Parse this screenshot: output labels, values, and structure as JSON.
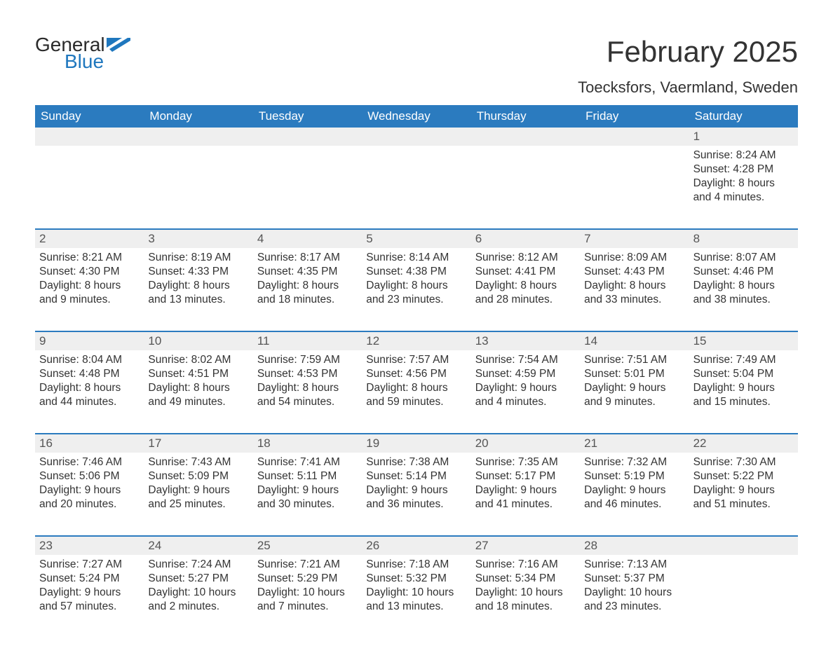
{
  "brand": {
    "general": "General",
    "blue": "Blue"
  },
  "title": "February 2025",
  "location": "Toecksfors, Vaermland, Sweden",
  "colors": {
    "header_bg": "#2b7bbf",
    "header_text": "#ffffff",
    "daynum_bg": "#efefef",
    "border": "#2b7bbf",
    "logo_blue": "#1f77be",
    "text": "#333333"
  },
  "weekday_labels": [
    "Sunday",
    "Monday",
    "Tuesday",
    "Wednesday",
    "Thursday",
    "Friday",
    "Saturday"
  ],
  "weeks": [
    {
      "numbers": [
        "",
        "",
        "",
        "",
        "",
        "",
        "1"
      ],
      "cells": [
        null,
        null,
        null,
        null,
        null,
        null,
        {
          "sunrise": "Sunrise: 8:24 AM",
          "sunset": "Sunset: 4:28 PM",
          "day1": "Daylight: 8 hours",
          "day2": "and 4 minutes."
        }
      ]
    },
    {
      "numbers": [
        "2",
        "3",
        "4",
        "5",
        "6",
        "7",
        "8"
      ],
      "cells": [
        {
          "sunrise": "Sunrise: 8:21 AM",
          "sunset": "Sunset: 4:30 PM",
          "day1": "Daylight: 8 hours",
          "day2": "and 9 minutes."
        },
        {
          "sunrise": "Sunrise: 8:19 AM",
          "sunset": "Sunset: 4:33 PM",
          "day1": "Daylight: 8 hours",
          "day2": "and 13 minutes."
        },
        {
          "sunrise": "Sunrise: 8:17 AM",
          "sunset": "Sunset: 4:35 PM",
          "day1": "Daylight: 8 hours",
          "day2": "and 18 minutes."
        },
        {
          "sunrise": "Sunrise: 8:14 AM",
          "sunset": "Sunset: 4:38 PM",
          "day1": "Daylight: 8 hours",
          "day2": "and 23 minutes."
        },
        {
          "sunrise": "Sunrise: 8:12 AM",
          "sunset": "Sunset: 4:41 PM",
          "day1": "Daylight: 8 hours",
          "day2": "and 28 minutes."
        },
        {
          "sunrise": "Sunrise: 8:09 AM",
          "sunset": "Sunset: 4:43 PM",
          "day1": "Daylight: 8 hours",
          "day2": "and 33 minutes."
        },
        {
          "sunrise": "Sunrise: 8:07 AM",
          "sunset": "Sunset: 4:46 PM",
          "day1": "Daylight: 8 hours",
          "day2": "and 38 minutes."
        }
      ]
    },
    {
      "numbers": [
        "9",
        "10",
        "11",
        "12",
        "13",
        "14",
        "15"
      ],
      "cells": [
        {
          "sunrise": "Sunrise: 8:04 AM",
          "sunset": "Sunset: 4:48 PM",
          "day1": "Daylight: 8 hours",
          "day2": "and 44 minutes."
        },
        {
          "sunrise": "Sunrise: 8:02 AM",
          "sunset": "Sunset: 4:51 PM",
          "day1": "Daylight: 8 hours",
          "day2": "and 49 minutes."
        },
        {
          "sunrise": "Sunrise: 7:59 AM",
          "sunset": "Sunset: 4:53 PM",
          "day1": "Daylight: 8 hours",
          "day2": "and 54 minutes."
        },
        {
          "sunrise": "Sunrise: 7:57 AM",
          "sunset": "Sunset: 4:56 PM",
          "day1": "Daylight: 8 hours",
          "day2": "and 59 minutes."
        },
        {
          "sunrise": "Sunrise: 7:54 AM",
          "sunset": "Sunset: 4:59 PM",
          "day1": "Daylight: 9 hours",
          "day2": "and 4 minutes."
        },
        {
          "sunrise": "Sunrise: 7:51 AM",
          "sunset": "Sunset: 5:01 PM",
          "day1": "Daylight: 9 hours",
          "day2": "and 9 minutes."
        },
        {
          "sunrise": "Sunrise: 7:49 AM",
          "sunset": "Sunset: 5:04 PM",
          "day1": "Daylight: 9 hours",
          "day2": "and 15 minutes."
        }
      ]
    },
    {
      "numbers": [
        "16",
        "17",
        "18",
        "19",
        "20",
        "21",
        "22"
      ],
      "cells": [
        {
          "sunrise": "Sunrise: 7:46 AM",
          "sunset": "Sunset: 5:06 PM",
          "day1": "Daylight: 9 hours",
          "day2": "and 20 minutes."
        },
        {
          "sunrise": "Sunrise: 7:43 AM",
          "sunset": "Sunset: 5:09 PM",
          "day1": "Daylight: 9 hours",
          "day2": "and 25 minutes."
        },
        {
          "sunrise": "Sunrise: 7:41 AM",
          "sunset": "Sunset: 5:11 PM",
          "day1": "Daylight: 9 hours",
          "day2": "and 30 minutes."
        },
        {
          "sunrise": "Sunrise: 7:38 AM",
          "sunset": "Sunset: 5:14 PM",
          "day1": "Daylight: 9 hours",
          "day2": "and 36 minutes."
        },
        {
          "sunrise": "Sunrise: 7:35 AM",
          "sunset": "Sunset: 5:17 PM",
          "day1": "Daylight: 9 hours",
          "day2": "and 41 minutes."
        },
        {
          "sunrise": "Sunrise: 7:32 AM",
          "sunset": "Sunset: 5:19 PM",
          "day1": "Daylight: 9 hours",
          "day2": "and 46 minutes."
        },
        {
          "sunrise": "Sunrise: 7:30 AM",
          "sunset": "Sunset: 5:22 PM",
          "day1": "Daylight: 9 hours",
          "day2": "and 51 minutes."
        }
      ]
    },
    {
      "numbers": [
        "23",
        "24",
        "25",
        "26",
        "27",
        "28",
        ""
      ],
      "cells": [
        {
          "sunrise": "Sunrise: 7:27 AM",
          "sunset": "Sunset: 5:24 PM",
          "day1": "Daylight: 9 hours",
          "day2": "and 57 minutes."
        },
        {
          "sunrise": "Sunrise: 7:24 AM",
          "sunset": "Sunset: 5:27 PM",
          "day1": "Daylight: 10 hours",
          "day2": "and 2 minutes."
        },
        {
          "sunrise": "Sunrise: 7:21 AM",
          "sunset": "Sunset: 5:29 PM",
          "day1": "Daylight: 10 hours",
          "day2": "and 7 minutes."
        },
        {
          "sunrise": "Sunrise: 7:18 AM",
          "sunset": "Sunset: 5:32 PM",
          "day1": "Daylight: 10 hours",
          "day2": "and 13 minutes."
        },
        {
          "sunrise": "Sunrise: 7:16 AM",
          "sunset": "Sunset: 5:34 PM",
          "day1": "Daylight: 10 hours",
          "day2": "and 18 minutes."
        },
        {
          "sunrise": "Sunrise: 7:13 AM",
          "sunset": "Sunset: 5:37 PM",
          "day1": "Daylight: 10 hours",
          "day2": "and 23 minutes."
        },
        null
      ]
    }
  ]
}
